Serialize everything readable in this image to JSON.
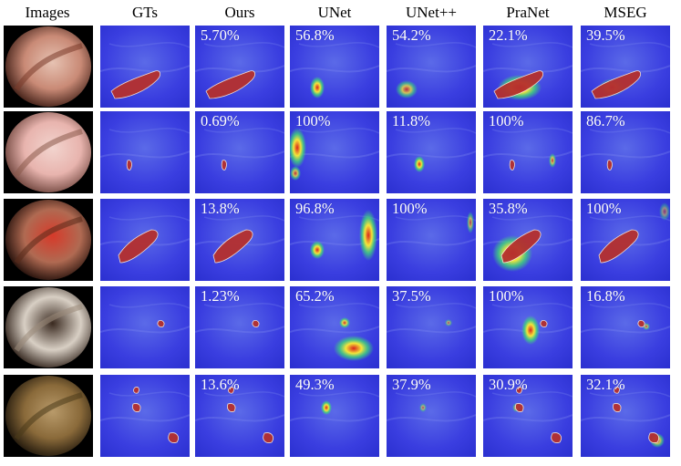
{
  "columns": [
    "Images",
    "GTs",
    "Ours",
    "UNet",
    "UNet++",
    "PraNet",
    "MSEG"
  ],
  "rows": [
    {
      "scores": {
        "ours": "5.70%",
        "unet": "56.8%",
        "unetpp": "54.2%",
        "pranet": "22.1%",
        "mseg": "39.5%"
      }
    },
    {
      "scores": {
        "ours": "0.69%",
        "unet": "100%",
        "unetpp": "11.8%",
        "pranet": "100%",
        "mseg": "86.7%"
      }
    },
    {
      "scores": {
        "ours": "13.8%",
        "unet": "96.8%",
        "unetpp": "100%",
        "pranet": "35.8%",
        "mseg": "100%"
      }
    },
    {
      "scores": {
        "ours": "1.23%",
        "unet": "65.2%",
        "unetpp": "37.5%",
        "pranet": "100%",
        "mseg": "16.8%"
      }
    },
    {
      "scores": {
        "ours": "13.6%",
        "unet": "49.3%",
        "unetpp": "37.9%",
        "pranet": "30.9%",
        "mseg": "32.1%"
      }
    }
  ],
  "colors": {
    "heatmap_bg": "#3a3ee0",
    "lesion": "#b5302e",
    "lesion_outline": "#f4e4d8"
  }
}
